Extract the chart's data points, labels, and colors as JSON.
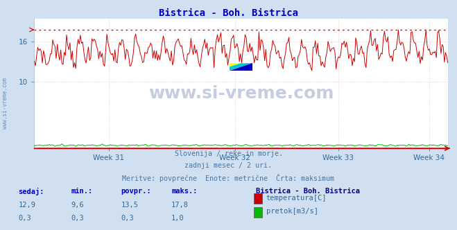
{
  "title": "Bistrica - Boh. Bistrica",
  "title_color": "#0000cc",
  "bg_color": "#d0e0f0",
  "plot_bg_color": "#ffffff",
  "grid_color": "#ddbbbb",
  "x_tick_labels": [
    "Week 31",
    "Week 32",
    "Week 33",
    "Week 34"
  ],
  "y_ticks": [
    10,
    16
  ],
  "y_max_line": 17.8,
  "y_min": 0,
  "y_max": 19.5,
  "temp_color": "#cc0000",
  "flow_color": "#00bb00",
  "height_color": "#0000cc",
  "max_line_color": "#ff0000",
  "watermark_text": "www.si-vreme.com",
  "watermark_color": "#1a3a8a",
  "watermark_alpha": 0.25,
  "side_watermark_color": "#5577aa",
  "footer_line1": "Slovenija / reke in morje.",
  "footer_line2": "zadnji mesec / 2 uri.",
  "footer_line3": "Meritve: povprečne  Enote: metrične  Črta: maksimum",
  "footer_color": "#4477aa",
  "legend_title": "Bistrica - Boh. Bistrica",
  "legend_title_color": "#000088",
  "table_headers": [
    "sedaj:",
    "min.:",
    "povpr.:",
    "maks.:"
  ],
  "table_header_color": "#0000cc",
  "row1_values": [
    "12,9",
    "9,6",
    "13,5",
    "17,8"
  ],
  "row2_values": [
    "0,3",
    "0,3",
    "0,3",
    "1,0"
  ],
  "row_color": "#336699",
  "n_points": 360,
  "temp_min": 9.6,
  "temp_max": 17.8,
  "flow_max": 1.0,
  "axis_color": "#cc0000",
  "tick_color": "#336699",
  "spine_color": "#aaaaaa"
}
